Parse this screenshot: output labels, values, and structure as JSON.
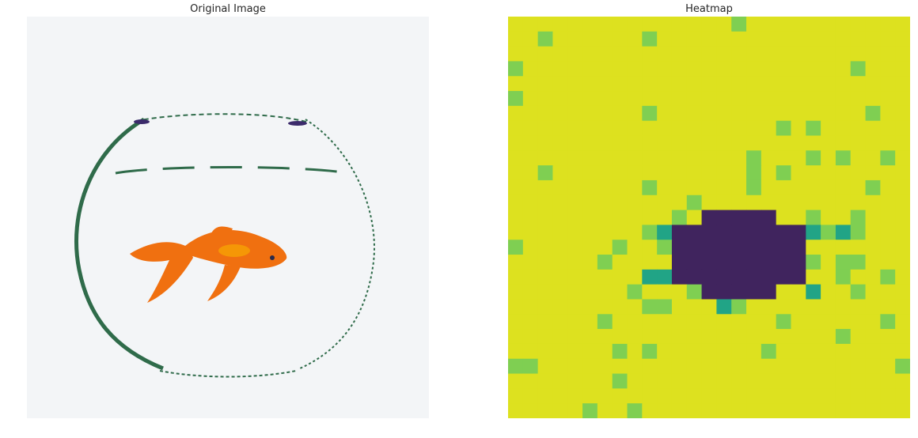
{
  "panels": {
    "left": {
      "title": "Original Image"
    },
    "right": {
      "title": "Heatmap"
    }
  },
  "photo": {
    "background": "#f3f5f7",
    "bowl_color": "#2f6b4a",
    "rim_color": "#3b2a6b",
    "fish_color": "#f07010",
    "fish_highlight": "#f9b000"
  },
  "heatmap": {
    "palette": [
      "#40245e",
      "#3e5c8c",
      "#21a486",
      "#7fcf52",
      "#dde11f"
    ],
    "seed": 7
  }
}
